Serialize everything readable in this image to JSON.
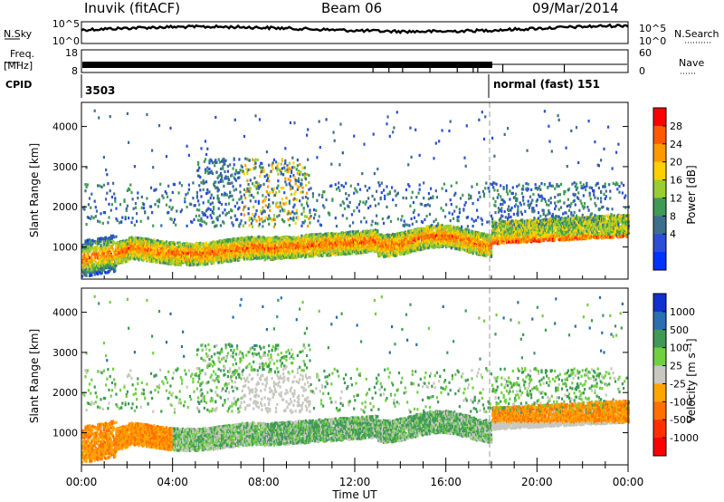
{
  "header": {
    "station": "Inuvik (fitACF)",
    "beam": "Beam 06",
    "date": "09/Mar/2014"
  },
  "param_panel": {
    "nsky_label": "N.Sky",
    "nsearch_label": "N.Search",
    "freq_label": "Freq.",
    "freq_unit": "[MHz]",
    "nave_label": "Nave",
    "cpid_label": "CPID",
    "noise_ticks": [
      "10^5",
      "10^0"
    ],
    "freq_ticks": [
      "18",
      "8"
    ],
    "nave_ticks": [
      "60",
      "0"
    ],
    "cpid_segments": [
      {
        "label": "3503",
        "start_hour": 0
      },
      {
        "label": "normal (fast) 151",
        "start_hour": 18
      }
    ]
  },
  "chart_data": [
    {
      "type": "heatmap",
      "name_panel": "power",
      "ylabel": "Slant Range [km]",
      "yticks": [
        "1000",
        "2000",
        "3000",
        "4000"
      ],
      "ylim": [
        200,
        4600
      ],
      "xlim_hours": [
        0,
        24
      ],
      "colorbar_label": "Power [dB]",
      "colorbar_ticks": [
        "4",
        "8",
        "12",
        "16",
        "20",
        "24",
        "28"
      ],
      "colorbar_colors": [
        "#0033ff",
        "#2a4fd6",
        "#3e6e8e",
        "#3f9a55",
        "#9acd32",
        "#ffd000",
        "#ff9900",
        "#ff5a00",
        "#ff0000"
      ]
    },
    {
      "type": "heatmap",
      "name_panel": "velocity",
      "ylabel": "Slant Range [km]",
      "yticks": [
        "1000",
        "2000",
        "3000",
        "4000"
      ],
      "ylim": [
        200,
        4600
      ],
      "xlim_hours": [
        0,
        24
      ],
      "colorbar_label": "Velocity [m s⁻¹]",
      "colorbar_ticks": [
        "1000",
        "500",
        "100",
        "25",
        "-25",
        "-100",
        "-500",
        "-1000"
      ],
      "colorbar_colors": [
        "#1030d0",
        "#2a6fb0",
        "#3f9a55",
        "#6fd040",
        "#c8c8c0",
        "#ffa500",
        "#ff7000",
        "#ff3000",
        "#ff0000"
      ]
    }
  ],
  "xaxis": {
    "ticks": [
      "00:00",
      "04:00",
      "08:00",
      "12:00",
      "16:00",
      "20:00",
      "00:00"
    ],
    "label": "Time UT"
  }
}
